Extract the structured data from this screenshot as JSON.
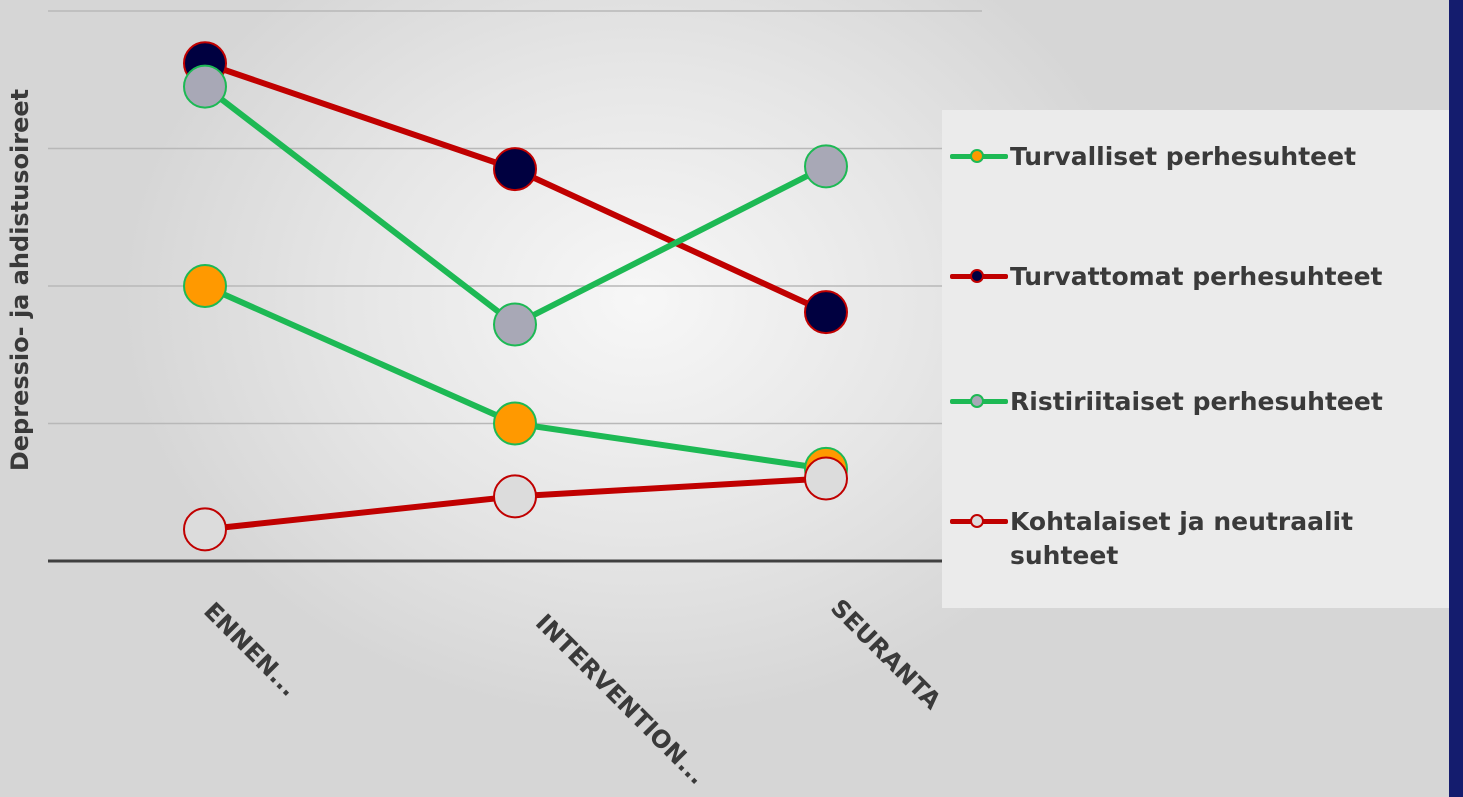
{
  "chart_data": {
    "type": "line",
    "ylabel": "Depressio- ja ahdistusoireet",
    "categories": [
      "ENNEN...",
      "INTERVENTION...",
      "SEURANTA"
    ],
    "ylim": [
      0,
      4
    ],
    "grid": true,
    "legend_position": "right",
    "series": [
      {
        "name": "Turvalliset perhesuhteet",
        "values": [
          2.0,
          1.0,
          0.67
        ],
        "line_color": "#1db954",
        "marker_fill": "#ff9900",
        "marker_edge": "#1db954"
      },
      {
        "name": "Turvattomat perhesuhteet",
        "values": [
          3.62,
          2.85,
          1.81
        ],
        "line_color": "#c00000",
        "marker_fill": "#000040",
        "marker_edge": "#c00000"
      },
      {
        "name": "Ristiriitaiset perhesuhteet",
        "values": [
          3.45,
          1.72,
          2.87
        ],
        "line_color": "#1db954",
        "marker_fill": "#a8a8b6",
        "marker_edge": "#1db954"
      },
      {
        "name": "Kohtalaiset ja neutraalit suhteet",
        "values": [
          0.23,
          0.47,
          0.6
        ],
        "line_color": "#c00000",
        "marker_fill": "#dcdcdc",
        "marker_edge": "#c00000"
      }
    ]
  }
}
